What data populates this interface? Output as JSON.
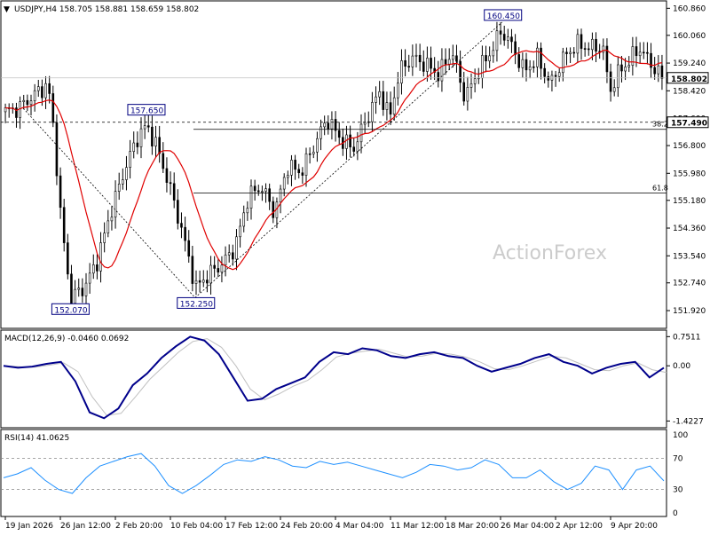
{
  "chart_data": {
    "type": "candlestick",
    "symbol": "USDJPY,H4",
    "ohlc_header": {
      "symbol": "USDJPY,H4",
      "open": 158.705,
      "high": 158.881,
      "low": 158.659,
      "close": 158.802
    },
    "current_price": 158.802,
    "main_y_ticks": [
      "160.860",
      "160.060",
      "159.240",
      "158.420",
      "157.600",
      "156.800",
      "155.980",
      "155.180",
      "154.360",
      "153.540",
      "152.740",
      "151.920"
    ],
    "main_ylim": [
      151.5,
      161.0
    ],
    "x_ticks": [
      "19 Jan 2026",
      "26 Jan 12:00",
      "2 Feb 20:00",
      "10 Feb 04:00",
      "17 Feb 12:00",
      "24 Feb 20:00",
      "4 Mar 04:00",
      "11 Mar 12:00",
      "18 Mar 20:00",
      "26 Mar 04:00",
      "2 Apr 12:00",
      "9 Apr 20:00"
    ],
    "annotations": [
      {
        "label": "160.450",
        "price": 160.45,
        "t": 0.755
      },
      {
        "label": "157.650",
        "price": 157.65,
        "t": 0.215
      },
      {
        "label": "152.070",
        "price": 152.07,
        "t": 0.1
      },
      {
        "label": "152.250",
        "price": 152.25,
        "t": 0.29
      }
    ],
    "levels": [
      {
        "label": "157.490",
        "price": 157.49,
        "type": "horizontal-dashed",
        "kind": "support-resistance"
      },
      {
        "label": "38.2",
        "price": 157.49,
        "type": "fibonacci"
      },
      {
        "label": "61.8",
        "price": 155.4,
        "type": "fibonacci"
      }
    ],
    "watermark": "ActionForex",
    "macd": {
      "title": "MACD(12,26,9) -0.0460 0.0692",
      "ticks": [
        "0.7511",
        "0.00",
        "-1.4227"
      ],
      "ylim": [
        -1.55,
        0.85
      ],
      "values": [
        0.0,
        -0.05,
        -0.02,
        0.05,
        0.1,
        -0.4,
        -1.2,
        -1.35,
        -1.1,
        -0.5,
        -0.2,
        0.2,
        0.5,
        0.75,
        0.65,
        0.3,
        -0.3,
        -0.9,
        -0.85,
        -0.6,
        -0.45,
        -0.3,
        0.1,
        0.35,
        0.3,
        0.45,
        0.4,
        0.25,
        0.2,
        0.3,
        0.35,
        0.25,
        0.2,
        0.0,
        -0.15,
        -0.05,
        0.05,
        0.2,
        0.3,
        0.1,
        0.0,
        -0.2,
        -0.05,
        0.05,
        0.1,
        -0.3,
        -0.05
      ]
    },
    "rsi": {
      "title": "RSI(14) 41.0625",
      "ticks": [
        "100",
        "70",
        "30",
        "0"
      ],
      "levels": [
        70,
        30
      ],
      "values": [
        45,
        50,
        58,
        42,
        30,
        25,
        45,
        60,
        66,
        72,
        76,
        60,
        35,
        25,
        35,
        48,
        62,
        68,
        66,
        72,
        68,
        60,
        58,
        66,
        62,
        65,
        60,
        55,
        50,
        45,
        52,
        62,
        60,
        55,
        58,
        68,
        62,
        45,
        45,
        55,
        40,
        30,
        38,
        60,
        55,
        30,
        55,
        60,
        41
      ]
    }
  },
  "colors": {
    "candle": "#000000",
    "ma": "#e00000",
    "macd_line": "#00008b",
    "macd_signal": "#c0c0c0",
    "rsi": "#1e90ff",
    "grid": "#000000",
    "watermark": "#cccccc"
  }
}
